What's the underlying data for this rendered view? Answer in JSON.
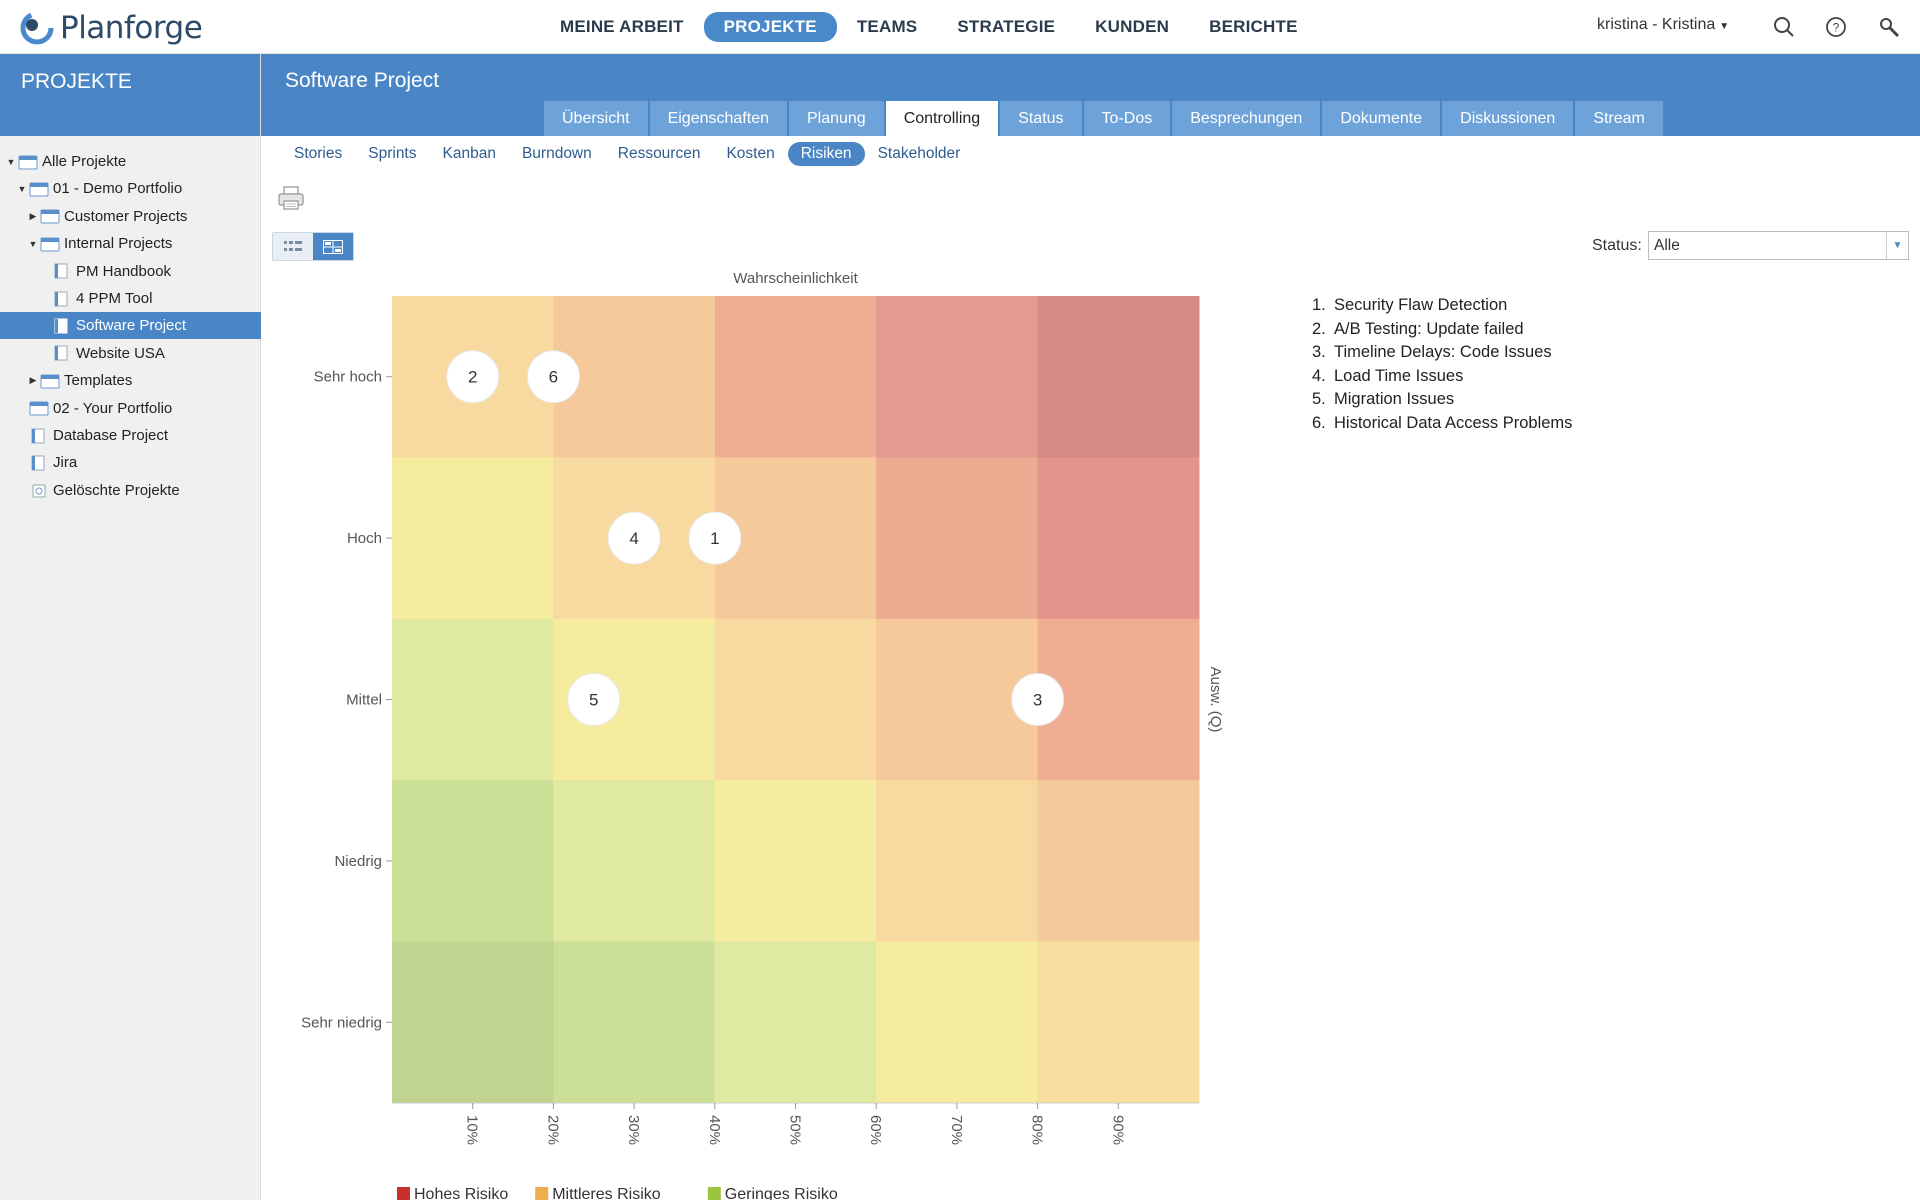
{
  "app": {
    "name": "Planforge"
  },
  "mainnav": [
    {
      "label": "MEINE ARBEIT",
      "active": false
    },
    {
      "label": "PROJEKTE",
      "active": true
    },
    {
      "label": "TEAMS",
      "active": false
    },
    {
      "label": "STRATEGIE",
      "active": false
    },
    {
      "label": "KUNDEN",
      "active": false
    },
    {
      "label": "BERICHTE",
      "active": false
    }
  ],
  "user": {
    "label": "kristina - Kristina"
  },
  "top_icons": [
    "search-icon",
    "help-icon",
    "tools-icon"
  ],
  "sidebar": {
    "header": "PROJEKTE",
    "items": [
      {
        "label": "Alle Projekte",
        "level": 0,
        "arrow": "down",
        "icon": "folder-icon"
      },
      {
        "label": "01 - Demo Portfolio",
        "level": 1,
        "arrow": "down",
        "icon": "folder-icon"
      },
      {
        "label": "Customer Projects",
        "level": 2,
        "arrow": "right",
        "icon": "folder-icon"
      },
      {
        "label": "Internal Projects",
        "level": 2,
        "arrow": "down",
        "icon": "folder-icon"
      },
      {
        "label": "PM Handbook",
        "level": 3,
        "arrow": "",
        "icon": "project-icon"
      },
      {
        "label": "4 PPM Tool",
        "level": 3,
        "arrow": "",
        "icon": "project-icon"
      },
      {
        "label": "Software Project",
        "level": 3,
        "arrow": "",
        "icon": "project-icon",
        "selected": true
      },
      {
        "label": "Website USA",
        "level": 3,
        "arrow": "",
        "icon": "project-icon"
      },
      {
        "label": "Templates",
        "level": 2,
        "arrow": "right",
        "icon": "folder-icon"
      },
      {
        "label": "02 - Your Portfolio",
        "level": 1,
        "arrow": "",
        "icon": "folder-icon"
      },
      {
        "label": "Database Project",
        "level": 1,
        "arrow": "",
        "icon": "project-icon"
      },
      {
        "label": "Jira",
        "level": 1,
        "arrow": "",
        "icon": "project-icon"
      },
      {
        "label": "Gelöschte Projekte",
        "level": 1,
        "arrow": "",
        "icon": "trash-icon"
      }
    ]
  },
  "project": {
    "title": "Software Project"
  },
  "tabs": [
    {
      "label": "Übersicht",
      "active": false
    },
    {
      "label": "Eigenschaften",
      "active": false
    },
    {
      "label": "Planung",
      "active": false
    },
    {
      "label": "Controlling",
      "active": true
    },
    {
      "label": "Status",
      "active": false
    },
    {
      "label": "To-Dos",
      "active": false
    },
    {
      "label": "Besprechungen",
      "active": false
    },
    {
      "label": "Dokumente",
      "active": false
    },
    {
      "label": "Diskussionen",
      "active": false
    },
    {
      "label": "Stream",
      "active": false
    }
  ],
  "subtabs": [
    {
      "label": "Stories",
      "active": false
    },
    {
      "label": "Sprints",
      "active": false
    },
    {
      "label": "Kanban",
      "active": false
    },
    {
      "label": "Burndown",
      "active": false
    },
    {
      "label": "Ressourcen",
      "active": false
    },
    {
      "label": "Kosten",
      "active": false
    },
    {
      "label": "Risiken",
      "active": true
    },
    {
      "label": "Stakeholder",
      "active": false
    }
  ],
  "toolbar": {
    "print_icon": "printer-icon",
    "view_list_icon": "list-view-icon",
    "view_matrix_icon": "matrix-view-icon",
    "active_view": "matrix"
  },
  "filter": {
    "status_label": "Status:",
    "status_value": "Alle"
  },
  "risks": [
    {
      "num": "1.",
      "title": "Security Flaw Detection"
    },
    {
      "num": "2.",
      "title": "A/B Testing: Update failed"
    },
    {
      "num": "3.",
      "title": "Timeline Delays: Code Issues"
    },
    {
      "num": "4.",
      "title": "Load Time Issues"
    },
    {
      "num": "5.",
      "title": "Migration Issues"
    },
    {
      "num": "6.",
      "title": "Historical Data Access Problems"
    }
  ],
  "chart_data": {
    "type": "heatmap",
    "title": "",
    "xlabel": "Wahrscheinlichkeit",
    "ylabel": "Ausw. (Q)",
    "x_ticks": [
      "10%",
      "20%",
      "30%",
      "40%",
      "50%",
      "60%",
      "70%",
      "80%",
      "90%"
    ],
    "xlim": [
      0,
      100
    ],
    "y_categories": [
      "Sehr hoch",
      "Hoch",
      "Mittel",
      "Niedrig",
      "Sehr niedrig"
    ],
    "cell_colors": [
      [
        "#f8d9a0",
        "#f6c99a",
        "#efae92",
        "#e59a8f",
        "#d58b85"
      ],
      [
        "#f6ec9f",
        "#f8d9a0",
        "#f6c99a",
        "#ecaa91",
        "#e3948b"
      ],
      [
        "#dfeaa0",
        "#f6ec9f",
        "#f8d9a0",
        "#f6c99a",
        "#efae92"
      ],
      [
        "#cbdf97",
        "#dfeaa0",
        "#f6ec9f",
        "#f8d9a0",
        "#f6c99a"
      ],
      [
        "#c0d490",
        "#cbdf97",
        "#dfeaa0",
        "#f6ec9f",
        "#f8dfa0"
      ]
    ],
    "points": [
      {
        "id": "1",
        "probability": 40,
        "impact": "Hoch"
      },
      {
        "id": "2",
        "probability": 10,
        "impact": "Sehr hoch"
      },
      {
        "id": "3",
        "probability": 80,
        "impact": "Mittel"
      },
      {
        "id": "4",
        "probability": 30,
        "impact": "Hoch"
      },
      {
        "id": "5",
        "probability": 25,
        "impact": "Mittel"
      },
      {
        "id": "6",
        "probability": 20,
        "impact": "Sehr hoch"
      }
    ],
    "legend": [
      {
        "label": "Hohes Risiko",
        "color": "#c9302c"
      },
      {
        "label": "Mittleres Risiko",
        "color": "#f0ad4e"
      },
      {
        "label": "Geringes Risiko",
        "color": "#9bc53d"
      }
    ],
    "legend_position": "bottom-left"
  }
}
